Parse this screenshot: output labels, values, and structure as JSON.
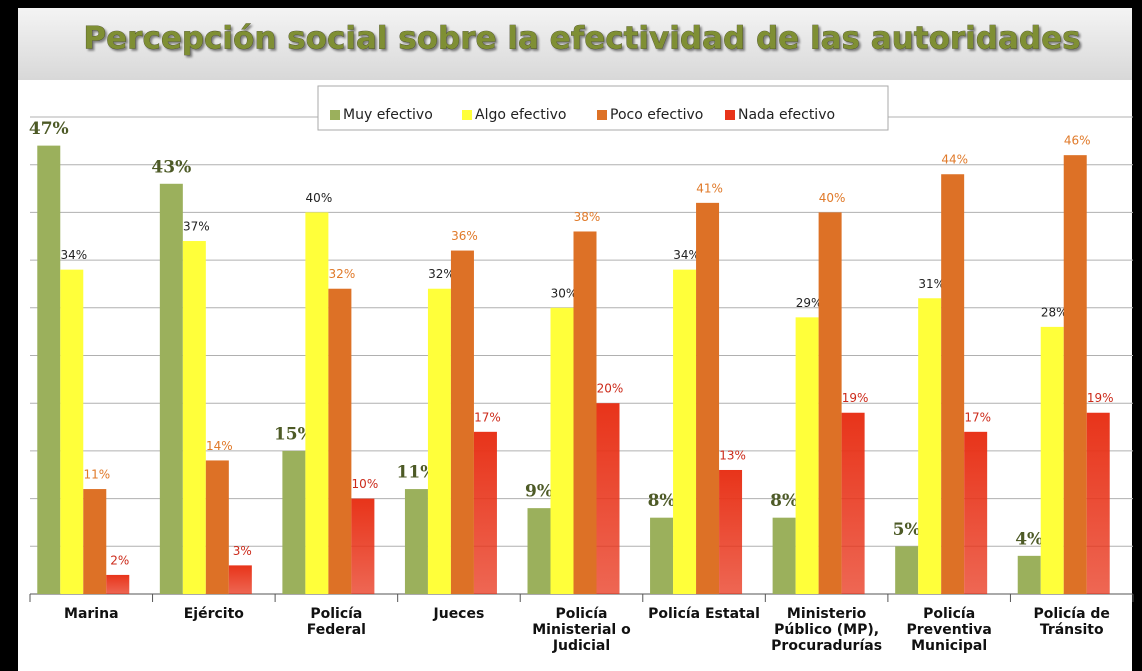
{
  "chart_data": {
    "type": "bar",
    "title": "Percepción social sobre la efectividad de las autoridades",
    "categories": [
      "Marina",
      "Ejército",
      "Policía Federal",
      "Jueces",
      "Policía Ministerial o Judicial",
      "Policía Estatal",
      "Ministerio Público (MP), Procuradurías",
      "Policía Preventiva Municipal",
      "Policía de Tránsito"
    ],
    "series": [
      {
        "name": "Muy efectivo",
        "color": "#9bb05c",
        "label_color": "#4d5a26",
        "values": [
          47,
          43,
          15,
          11,
          9,
          8,
          8,
          5,
          4
        ],
        "value_labels": [
          "47%",
          "43%",
          "15%",
          "11%",
          "9%",
          "8%",
          "8%",
          "5%",
          "4%"
        ]
      },
      {
        "name": "Algo efectivo",
        "color": "#ffff3a",
        "label_color": "#222222",
        "values": [
          34,
          37,
          40,
          32,
          30,
          34,
          29,
          31,
          28
        ],
        "value_labels": [
          "34%",
          "37%",
          "40%",
          "32%",
          "30%",
          "34%",
          "29%",
          "31%",
          "28%"
        ]
      },
      {
        "name": "Poco efectivo",
        "color": "#dd7126",
        "label_color": "#e07a2a",
        "values": [
          11,
          14,
          32,
          36,
          38,
          41,
          40,
          44,
          46
        ],
        "value_labels": [
          "11%",
          "14%",
          "32%",
          "36%",
          "38%",
          "41%",
          "40%",
          "44%",
          "46%"
        ]
      },
      {
        "name": "Nada efectivo",
        "color": "#e8341a",
        "label_color": "#cc2a1a",
        "values": [
          2,
          3,
          10,
          17,
          20,
          13,
          19,
          17,
          19
        ],
        "value_labels": [
          "2%",
          "3%",
          "10%",
          "17%",
          "20%",
          "13%",
          "19%",
          "17%",
          "19%"
        ]
      }
    ],
    "ylim": [
      0,
      50
    ],
    "yticks": [
      0,
      5,
      10,
      15,
      20,
      25,
      30,
      35,
      40,
      45,
      50
    ],
    "grid": true,
    "legend": "top"
  }
}
